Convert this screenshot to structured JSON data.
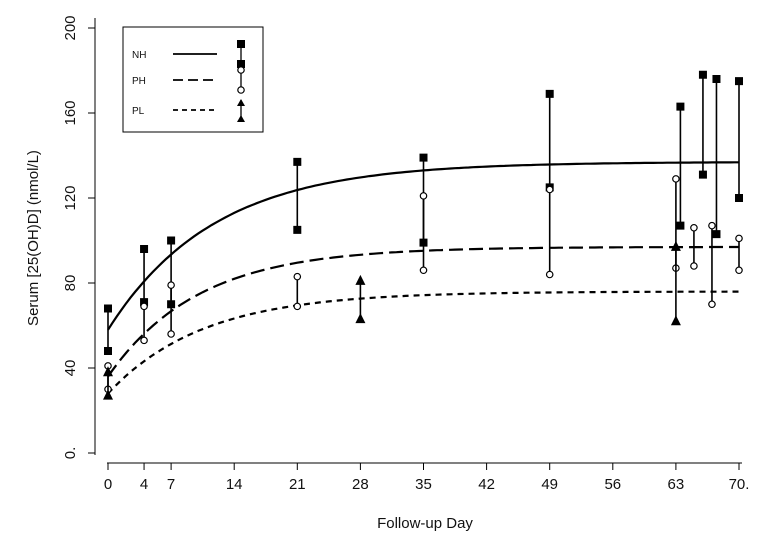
{
  "chart_data": {
    "type": "line",
    "xlabel": "Follow-up Day",
    "ylabel": "Serum [25(OH)D] (nmol/L)",
    "xlim": [
      -1,
      70.5
    ],
    "ylim": [
      0,
      200
    ],
    "x_ticks": [
      0,
      4,
      7,
      14,
      21,
      28,
      35,
      42,
      49,
      56,
      63,
      70
    ],
    "x_tick_labels": [
      "0",
      "4",
      "7",
      "14",
      "21",
      "28",
      "35",
      "42",
      "49",
      "56",
      "63",
      "70."
    ],
    "y_ticks": [
      0,
      40,
      80,
      120,
      160,
      200
    ],
    "y_tick_labels": [
      "0.",
      "40",
      "80",
      "120",
      "160",
      "200"
    ],
    "legend": [
      {
        "label": "NH",
        "line": "solid",
        "marker": "square"
      },
      {
        "label": "PH",
        "line": "longdash",
        "marker": "circle"
      },
      {
        "label": "PL",
        "line": "shortdash",
        "marker": "triangle"
      }
    ],
    "curves": [
      {
        "name": "NH",
        "baseline": 58,
        "plateau": 137,
        "rate": 0.085,
        "x_end": 70
      },
      {
        "name": "PH",
        "baseline": 36,
        "plateau": 97,
        "rate": 0.1,
        "x_end": 70
      },
      {
        "name": "PL",
        "baseline": 28,
        "plateau": 76,
        "rate": 0.095,
        "x_end": 70
      }
    ],
    "ranges": [
      {
        "series": "NH",
        "x": 0,
        "low": 48,
        "high": 68
      },
      {
        "series": "NH",
        "x": 4,
        "low": 71,
        "high": 96
      },
      {
        "series": "NH",
        "x": 7,
        "low": 70,
        "high": 100
      },
      {
        "series": "NH",
        "x": 21,
        "low": 105,
        "high": 137
      },
      {
        "series": "NH",
        "x": 35,
        "low": 99,
        "high": 139
      },
      {
        "series": "NH",
        "x": 49,
        "low": 125,
        "high": 169
      },
      {
        "series": "NH",
        "x": 63.5,
        "low": 107,
        "high": 163
      },
      {
        "series": "NH",
        "x": 66,
        "low": 131,
        "high": 178
      },
      {
        "series": "NH",
        "x": 67.5,
        "low": 103,
        "high": 176
      },
      {
        "series": "NH",
        "x": 70,
        "low": 120,
        "high": 175
      },
      {
        "series": "PH",
        "x": 0,
        "low": 30,
        "high": 41
      },
      {
        "series": "PH",
        "x": 4,
        "low": 53,
        "high": 69
      },
      {
        "series": "PH",
        "x": 7,
        "low": 56,
        "high": 79
      },
      {
        "series": "PH",
        "x": 21,
        "low": 69,
        "high": 83
      },
      {
        "series": "PH",
        "x": 35,
        "low": 86,
        "high": 121
      },
      {
        "series": "PH",
        "x": 49,
        "low": 84,
        "high": 124
      },
      {
        "series": "PH",
        "x": 63,
        "low": 87,
        "high": 129
      },
      {
        "series": "PH",
        "x": 65,
        "low": 88,
        "high": 106
      },
      {
        "series": "PH",
        "x": 67,
        "low": 70,
        "high": 107
      },
      {
        "series": "PH",
        "x": 70,
        "low": 86,
        "high": 101
      },
      {
        "series": "PL",
        "x": 0,
        "low": 27,
        "high": 38
      },
      {
        "series": "PL",
        "x": 28,
        "low": 63,
        "high": 81
      },
      {
        "series": "PL",
        "x": 63,
        "low": 62,
        "high": 97
      }
    ]
  }
}
